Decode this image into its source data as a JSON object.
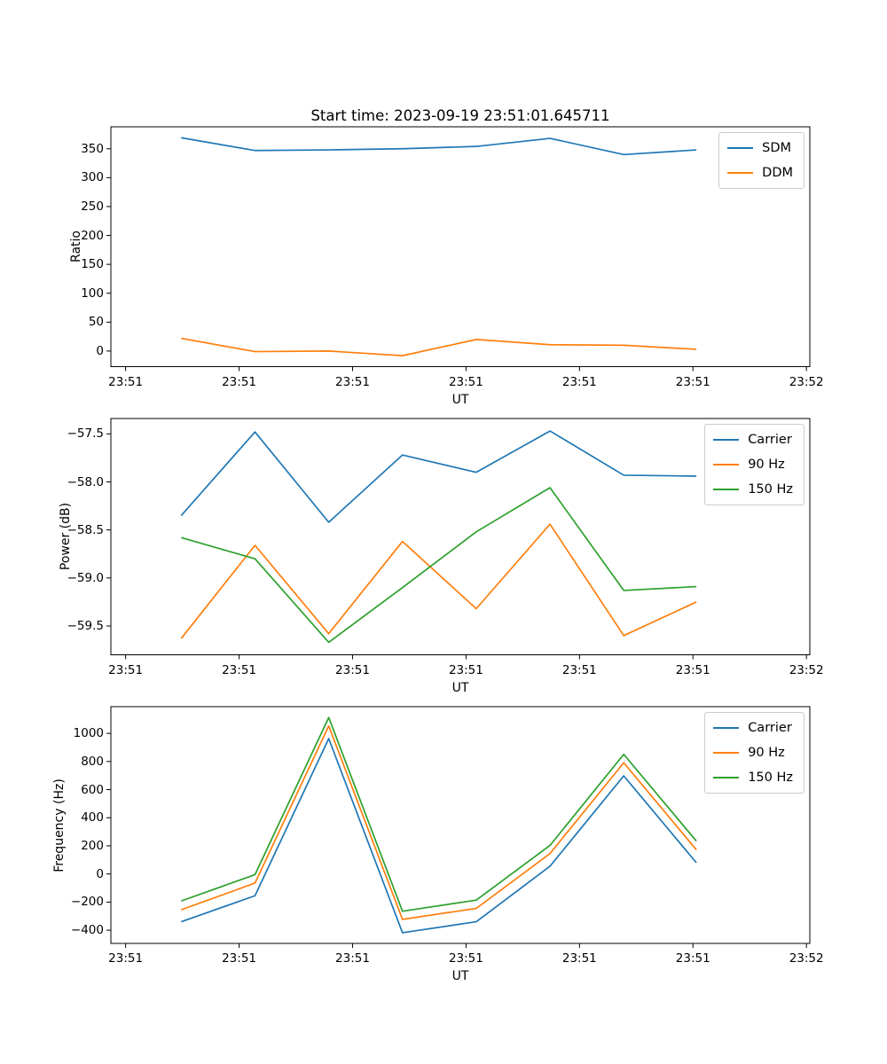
{
  "figure": {
    "title": "Start time: 2023-09-19 23:51:01.645711",
    "background": "#ffffff",
    "text_color": "#000000",
    "spine_color": "#000000"
  },
  "colors": {
    "blue": "#1f77b4",
    "orange": "#ff7f0e",
    "green": "#2ca02c"
  },
  "x_axis": {
    "label": "UT",
    "tick_seconds": [
      0,
      10,
      20,
      30,
      40,
      50,
      60
    ],
    "tick_labels": [
      "23:51",
      "23:51",
      "23:51",
      "23:51",
      "23:51",
      "23:51",
      "23:52"
    ],
    "xlim_seconds": [
      -1.3,
      60.3
    ]
  },
  "chart_data": [
    {
      "name": "ratio-plot",
      "type": "line",
      "title": "Start time: 2023-09-19 23:51:01.645711",
      "xlabel": "UT",
      "ylabel": "Ratio",
      "ylim": [
        -27,
        388
      ],
      "ytick_values": [
        0,
        50,
        100,
        150,
        200,
        250,
        300,
        350
      ],
      "ytick_labels": [
        "0",
        "50",
        "100",
        "150",
        "200",
        "250",
        "300",
        "350"
      ],
      "x_seconds": [
        4.9,
        11.4,
        17.9,
        24.4,
        30.9,
        37.4,
        43.9,
        50.3
      ],
      "grid": false,
      "legend_position": "upper right",
      "series": [
        {
          "name": "SDM",
          "color_key": "blue",
          "values": [
            369,
            347,
            348,
            350,
            354,
            368,
            340,
            348
          ]
        },
        {
          "name": "DDM",
          "color_key": "orange",
          "values": [
            22,
            -1,
            0,
            -8,
            20,
            11,
            10,
            3
          ]
        }
      ]
    },
    {
      "name": "power-plot",
      "type": "line",
      "title": "",
      "xlabel": "UT",
      "ylabel": "Power (dB)",
      "ylim": [
        -59.8,
        -57.34
      ],
      "ytick_values": [
        -59.5,
        -59.0,
        -58.5,
        -58.0,
        -57.5
      ],
      "ytick_labels": [
        "−59.5",
        "−59.0",
        "−58.5",
        "−58.0",
        "−57.5"
      ],
      "x_seconds": [
        4.9,
        11.4,
        17.9,
        24.4,
        30.9,
        37.4,
        43.9,
        50.3
      ],
      "grid": false,
      "legend_position": "upper right",
      "series": [
        {
          "name": "Carrier",
          "color_key": "blue",
          "values": [
            -58.35,
            -57.48,
            -58.42,
            -57.72,
            -57.9,
            -57.47,
            -57.93,
            -57.94
          ]
        },
        {
          "name": "90 Hz",
          "color_key": "orange",
          "values": [
            -59.63,
            -58.66,
            -59.58,
            -58.62,
            -59.32,
            -58.44,
            -59.6,
            -59.25
          ]
        },
        {
          "name": "150 Hz",
          "color_key": "green",
          "values": [
            -58.58,
            -58.8,
            -59.67,
            -59.1,
            -58.52,
            -58.06,
            -59.13,
            -59.09
          ]
        }
      ]
    },
    {
      "name": "frequency-plot",
      "type": "line",
      "title": "",
      "xlabel": "UT",
      "ylabel": "Frequency (Hz)",
      "ylim": [
        -494,
        1190
      ],
      "ytick_values": [
        -400,
        -200,
        0,
        200,
        400,
        600,
        800,
        1000
      ],
      "ytick_labels": [
        "−400",
        "−200",
        "0",
        "200",
        "400",
        "600",
        "800",
        "1000"
      ],
      "x_seconds": [
        4.9,
        11.4,
        17.9,
        24.4,
        30.9,
        37.4,
        43.9,
        50.3
      ],
      "grid": false,
      "legend_position": "upper right",
      "series": [
        {
          "name": "Carrier",
          "color_key": "blue",
          "values": [
            -340,
            -155,
            963,
            -418,
            -340,
            55,
            698,
            80
          ]
        },
        {
          "name": "90 Hz",
          "color_key": "orange",
          "values": [
            -255,
            -65,
            1053,
            -323,
            -245,
            145,
            791,
            172
          ]
        },
        {
          "name": "150 Hz",
          "color_key": "green",
          "values": [
            -192,
            -5,
            1113,
            -265,
            -186,
            203,
            851,
            234
          ]
        }
      ]
    }
  ]
}
